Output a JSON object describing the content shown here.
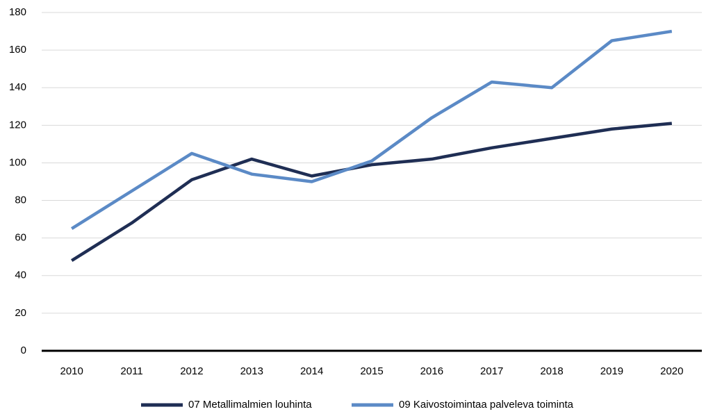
{
  "chart_data": {
    "type": "line",
    "categories": [
      "2010",
      "2011",
      "2012",
      "2013",
      "2014",
      "2015",
      "2016",
      "2017",
      "2018",
      "2019",
      "2020"
    ],
    "series": [
      {
        "name": "07 Metallimalmien louhinta",
        "color": "#1f2e54",
        "values": [
          48,
          68,
          91,
          102,
          93,
          99,
          102,
          108,
          113,
          118,
          121
        ]
      },
      {
        "name": "09 Kaivostoimintaa palveleva toiminta",
        "color": "#5b8ac6",
        "values": [
          65,
          85,
          105,
          94,
          90,
          101,
          124,
          143,
          140,
          165,
          170
        ]
      }
    ],
    "ylim": [
      0,
      180
    ],
    "yticks": [
      0,
      20,
      40,
      60,
      80,
      100,
      120,
      140,
      160,
      180
    ],
    "grid": true,
    "legend": "bottom"
  }
}
